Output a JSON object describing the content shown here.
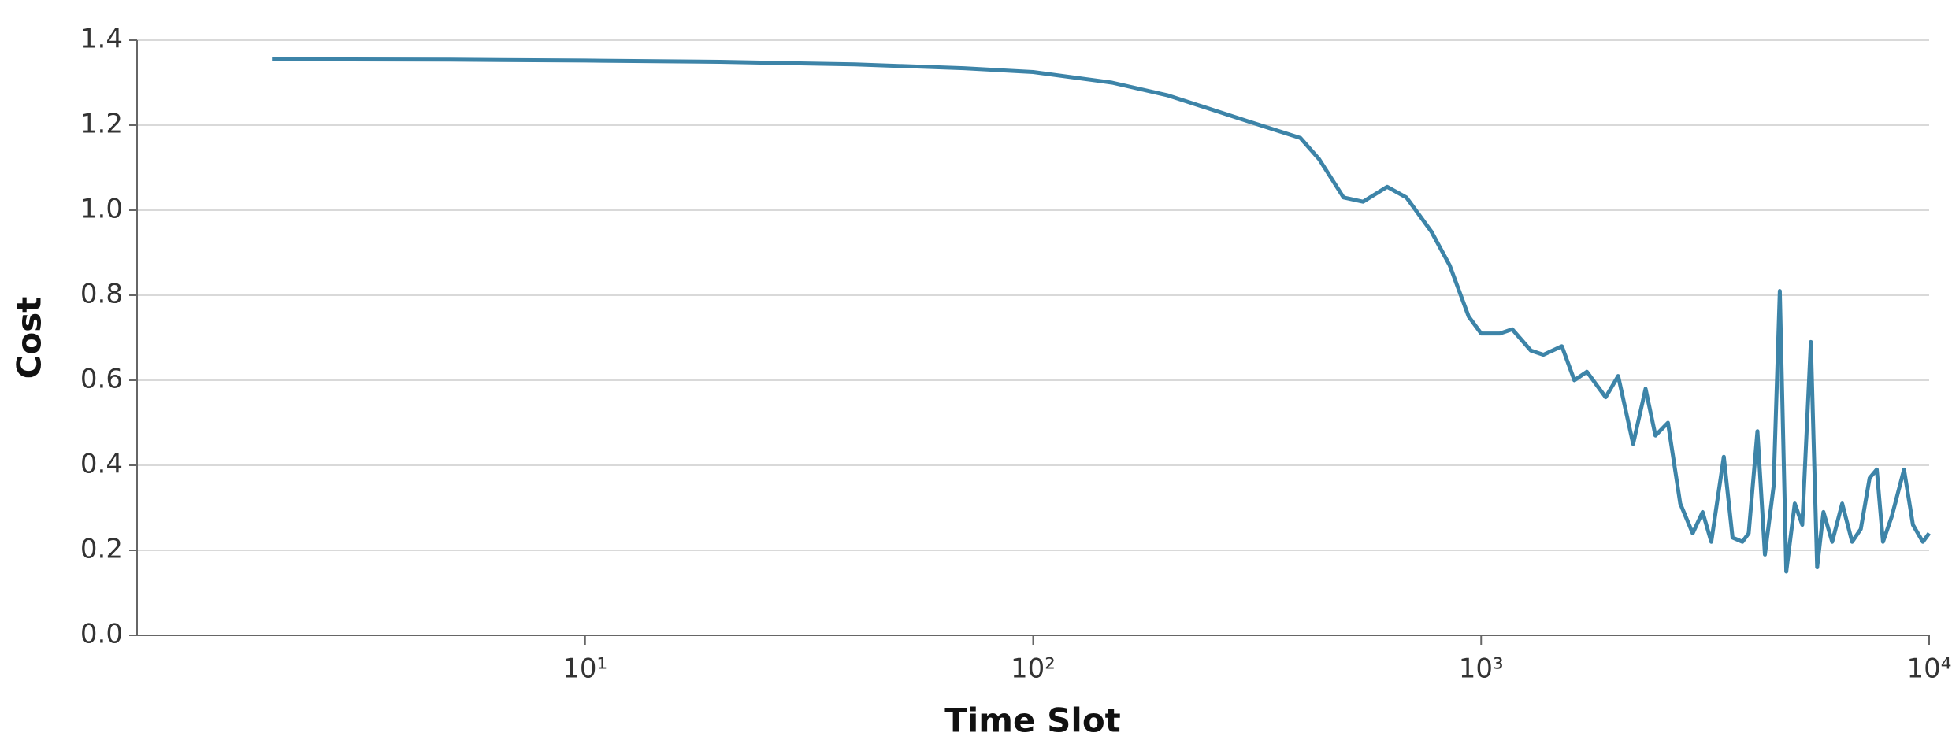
{
  "chart_data": {
    "type": "line",
    "x_label": "Time Slot",
    "y_label": "Cost",
    "x_scale": "log",
    "grid": true,
    "xlim": [
      1,
      10000
    ],
    "ylim": [
      0,
      1.4
    ],
    "xticks": [
      {
        "value": 10,
        "label": "10¹"
      },
      {
        "value": 100,
        "label": "10²"
      },
      {
        "value": 1000,
        "label": "10³"
      },
      {
        "value": 10000,
        "label": "10⁴"
      }
    ],
    "yticks": [
      {
        "value": 0,
        "label": "0.0"
      },
      {
        "value": 0.2,
        "label": "0.2"
      },
      {
        "value": 0.4,
        "label": "0.4"
      },
      {
        "value": 0.6,
        "label": "0.6"
      },
      {
        "value": 0.8,
        "label": "0.8"
      },
      {
        "value": 1,
        "label": "1.0"
      },
      {
        "value": 1.2,
        "label": "1.2"
      },
      {
        "value": 1.4,
        "label": "1.4"
      }
    ],
    "x": [
      2,
      5,
      10,
      20,
      40,
      70,
      100,
      150,
      200,
      300,
      395,
      435,
      493,
      545,
      617,
      681,
      774,
      851,
      938,
      1000,
      1101,
      1173,
      1291,
      1377,
      1514,
      1615,
      1722,
      1896,
      2022,
      2184,
      2328,
      2449,
      2612,
      2782,
      2966,
      3121,
      3264,
      3481,
      3640,
      3830,
      3955,
      4137,
      4299,
      4496,
      4642,
      4797,
      5012,
      5208,
      5445,
      5623,
      5808,
      6074,
      6397,
      6730,
      7036,
      7362,
      7640,
      7889,
      8253,
      8790,
      9200,
      9683,
      10000
    ],
    "series": [
      {
        "name": "Cost",
        "color": "#3d84a8",
        "values": [
          1.355,
          1.354,
          1.352,
          1.349,
          1.343,
          1.334,
          1.325,
          1.3,
          1.27,
          1.21,
          1.17,
          1.12,
          1.03,
          1.02,
          1.055,
          1.03,
          0.95,
          0.87,
          0.75,
          0.71,
          0.71,
          0.72,
          0.67,
          0.66,
          0.68,
          0.6,
          0.62,
          0.56,
          0.61,
          0.45,
          0.58,
          0.47,
          0.5,
          0.31,
          0.24,
          0.29,
          0.22,
          0.42,
          0.23,
          0.22,
          0.24,
          0.48,
          0.19,
          0.35,
          0.81,
          0.15,
          0.31,
          0.26,
          0.69,
          0.16,
          0.29,
          0.22,
          0.31,
          0.22,
          0.25,
          0.37,
          0.39,
          0.22,
          0.28,
          0.39,
          0.26,
          0.22,
          0.24
        ]
      }
    ]
  }
}
